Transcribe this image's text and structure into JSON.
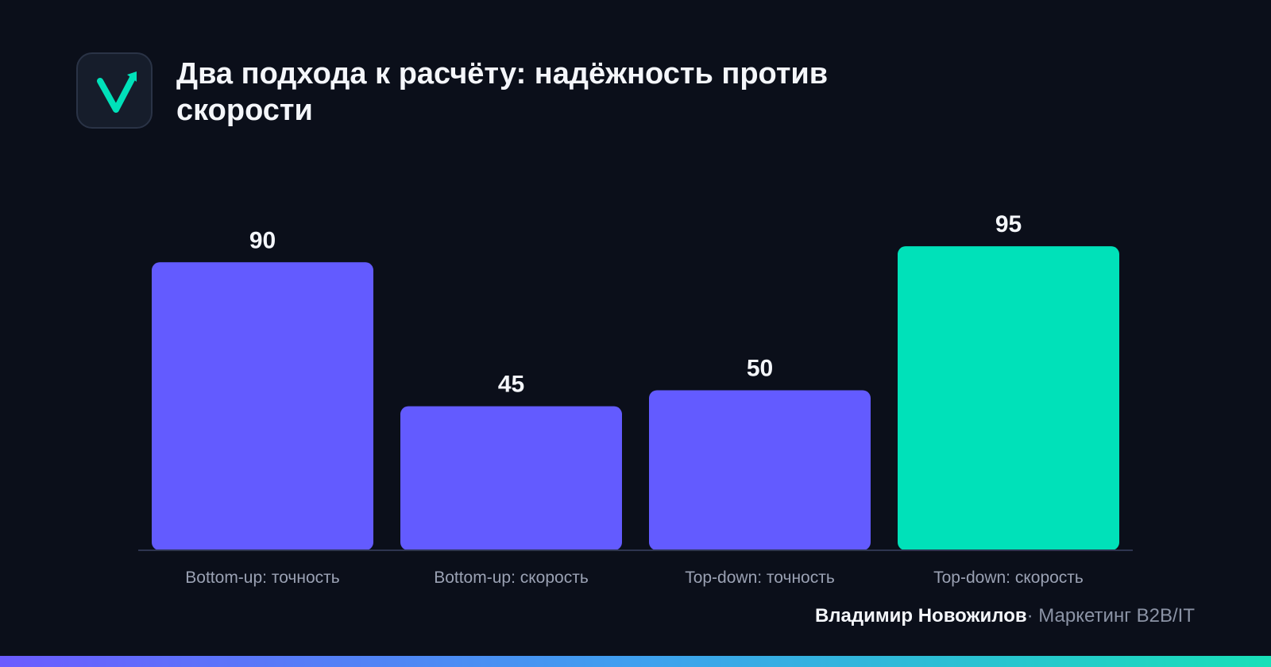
{
  "header": {
    "title": "Два подхода к расчёту: надёжность против скорости",
    "logo_icon": "check-arrow-icon"
  },
  "colors": {
    "background": "#0b0f1a",
    "primary_bar": "#635bff",
    "highlight_bar": "#00e1b9",
    "axis": "#2e3550",
    "label": "#9aa1b3",
    "value_label": "#f4f6fa"
  },
  "chart_data": {
    "type": "bar",
    "title": "Два подхода к расчёту: надёжность против скорости",
    "categories": [
      "Bottom-up: точность",
      "Bottom-up: скорость",
      "Top-down: точность",
      "Top-down: скорость"
    ],
    "values": [
      90,
      45,
      50,
      95
    ],
    "highlight_index": 3,
    "xlabel": "",
    "ylabel": "",
    "ylim": [
      0,
      100
    ],
    "grid": false,
    "data_labels": true
  },
  "footer": {
    "author": "Владимир Новожилов",
    "separator": "·",
    "org": "Маркетинг B2B/IT"
  }
}
